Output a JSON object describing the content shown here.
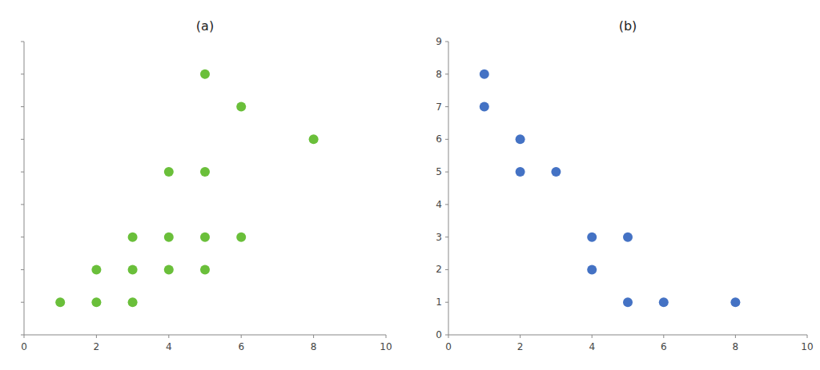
{
  "chart_data": [
    {
      "type": "scatter",
      "title": "(a)",
      "x": [
        1,
        2,
        2,
        3,
        3,
        3,
        4,
        4,
        4,
        5,
        5,
        5,
        5,
        6,
        6,
        8
      ],
      "y": [
        1,
        1,
        2,
        1,
        2,
        3,
        2,
        3,
        5,
        2,
        3,
        5,
        8,
        3,
        7,
        6
      ],
      "color": "#6abf3a",
      "xlim": [
        0,
        10
      ],
      "ylim": [
        0,
        9
      ],
      "xticks": [
        0,
        2,
        4,
        6,
        8,
        10
      ],
      "yticks": [
        0,
        1,
        2,
        3,
        4,
        5,
        6,
        7,
        8,
        9
      ],
      "tick_labels": "x",
      "grid": false
    },
    {
      "type": "scatter",
      "title": "(b)",
      "x": [
        1,
        1,
        2,
        2,
        3,
        4,
        4,
        5,
        5,
        6,
        8
      ],
      "y": [
        7,
        8,
        5,
        6,
        5,
        2,
        3,
        1,
        3,
        1,
        1
      ],
      "color": "#4472c4",
      "xlim": [
        0,
        10
      ],
      "ylim": [
        0,
        9
      ],
      "xticks": [
        0,
        2,
        4,
        6,
        8,
        10
      ],
      "yticks": [
        0,
        1,
        2,
        3,
        4,
        5,
        6,
        7,
        8,
        9
      ],
      "grid": false
    }
  ]
}
